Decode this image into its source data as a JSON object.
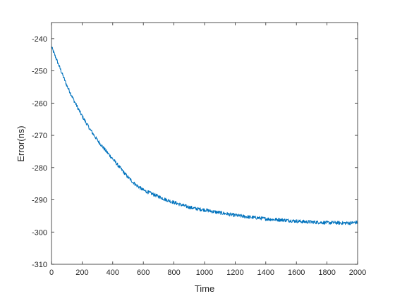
{
  "chart_data": {
    "type": "line",
    "title": "",
    "xlabel": "Time",
    "ylabel": "Error(ns)",
    "xlim": [
      0,
      2000
    ],
    "ylim": [
      -310,
      -235
    ],
    "x_ticks": [
      0,
      200,
      400,
      600,
      800,
      1000,
      1200,
      1400,
      1600,
      1800,
      2000
    ],
    "x_tick_labels": [
      "0",
      "200",
      "400",
      "600",
      "800",
      "1000",
      "1200",
      "1400",
      "1600",
      "1800",
      "2000"
    ],
    "y_ticks": [
      -240,
      -250,
      -260,
      -270,
      -280,
      -290,
      -300,
      -310
    ],
    "y_tick_labels": [
      "-240",
      "-250",
      "-260",
      "-270",
      "-280",
      "-290",
      "-300",
      "-310"
    ],
    "grid": false,
    "box": true,
    "series": [
      {
        "color": "#0072BD",
        "x": [
          0,
          50,
          100,
          150,
          200,
          250,
          300,
          350,
          400,
          450,
          500,
          550,
          600,
          650,
          700,
          750,
          800,
          850,
          900,
          950,
          1000,
          1050,
          1100,
          1150,
          1200,
          1250,
          1300,
          1350,
          1400,
          1450,
          1500,
          1550,
          1600,
          1650,
          1700,
          1750,
          1800,
          1850,
          1900,
          1950,
          2000
        ],
        "y": [
          -242.5,
          -248.5,
          -254.5,
          -259.5,
          -264.0,
          -268.0,
          -271.5,
          -274.5,
          -277.3,
          -280.2,
          -283.0,
          -285.3,
          -287.0,
          -288.0,
          -289.0,
          -290.0,
          -290.8,
          -291.6,
          -292.3,
          -292.8,
          -293.1,
          -293.6,
          -294.0,
          -294.4,
          -294.8,
          -295.1,
          -295.4,
          -295.6,
          -295.9,
          -296.1,
          -296.2,
          -296.4,
          -296.6,
          -296.8,
          -296.9,
          -297.0,
          -297.1,
          -297.1,
          -297.2,
          -297.2,
          -297.0
        ]
      }
    ]
  }
}
